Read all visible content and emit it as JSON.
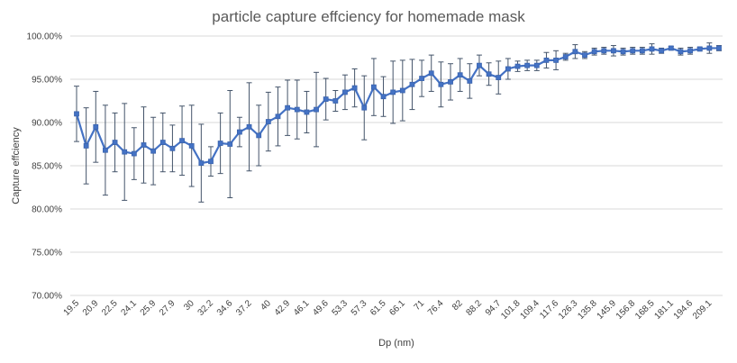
{
  "chart_data": {
    "type": "line",
    "title": "particle capture effciency for homemade mask",
    "xlabel": "Dp (nm)",
    "ylabel": "Capture effciency",
    "ylim": [
      0.7,
      1.0
    ],
    "yticks": [
      "70.00%",
      "75.00%",
      "80.00%",
      "85.00%",
      "90.00%",
      "95.00%",
      "100.00%"
    ],
    "ytick_values": [
      0.7,
      0.75,
      0.8,
      0.85,
      0.9,
      0.95,
      1.0
    ],
    "grid": true,
    "legend": "none",
    "x_tick_labels": [
      "19.5",
      "20.9",
      "22.5",
      "24.1",
      "25.9",
      "27.9",
      "30",
      "32.2",
      "34.6",
      "37.2",
      "40",
      "42.9",
      "46.1",
      "49.6",
      "53.3",
      "57.3",
      "61.5",
      "66.1",
      "71",
      "76.4",
      "82",
      "88.2",
      "94.7",
      "101.8",
      "109.4",
      "117.6",
      "126.3",
      "135.8",
      "145.9",
      "156.8",
      "168.5",
      "181.1",
      "194.6",
      "209.1"
    ],
    "values": [
      0.91,
      0.873,
      0.895,
      0.868,
      0.877,
      0.866,
      0.864,
      0.874,
      0.867,
      0.877,
      0.87,
      0.879,
      0.873,
      0.853,
      0.855,
      0.876,
      0.875,
      0.889,
      0.895,
      0.885,
      0.901,
      0.907,
      0.917,
      0.915,
      0.912,
      0.915,
      0.927,
      0.925,
      0.935,
      0.94,
      0.917,
      0.941,
      0.93,
      0.935,
      0.937,
      0.944,
      0.951,
      0.957,
      0.944,
      0.947,
      0.955,
      0.948,
      0.966,
      0.956,
      0.952,
      0.962,
      0.965,
      0.966,
      0.966,
      0.972,
      0.972,
      0.976,
      0.982,
      0.978,
      0.982,
      0.983,
      0.983,
      0.982,
      0.983,
      0.983,
      0.985,
      0.983,
      0.986,
      0.982,
      0.983,
      0.985,
      0.986,
      0.986
    ],
    "errors": [
      0.032,
      0.044,
      0.041,
      0.052,
      0.034,
      0.056,
      0.03,
      0.044,
      0.039,
      0.034,
      0.027,
      0.04,
      0.047,
      0.045,
      0.017,
      0.035,
      0.062,
      0.017,
      0.051,
      0.035,
      0.034,
      0.034,
      0.032,
      0.034,
      0.024,
      0.043,
      0.024,
      0.012,
      0.02,
      0.022,
      0.037,
      0.033,
      0.023,
      0.036,
      0.035,
      0.029,
      0.021,
      0.021,
      0.026,
      0.021,
      0.019,
      0.02,
      0.012,
      0.013,
      0.019,
      0.012,
      0.006,
      0.006,
      0.006,
      0.009,
      0.011,
      0.004,
      0.008,
      0.004,
      0.004,
      0.004,
      0.006,
      0.004,
      0.004,
      0.004,
      0.006,
      0.003,
      0.002,
      0.004,
      0.004,
      0.002,
      0.006,
      0.003
    ]
  }
}
